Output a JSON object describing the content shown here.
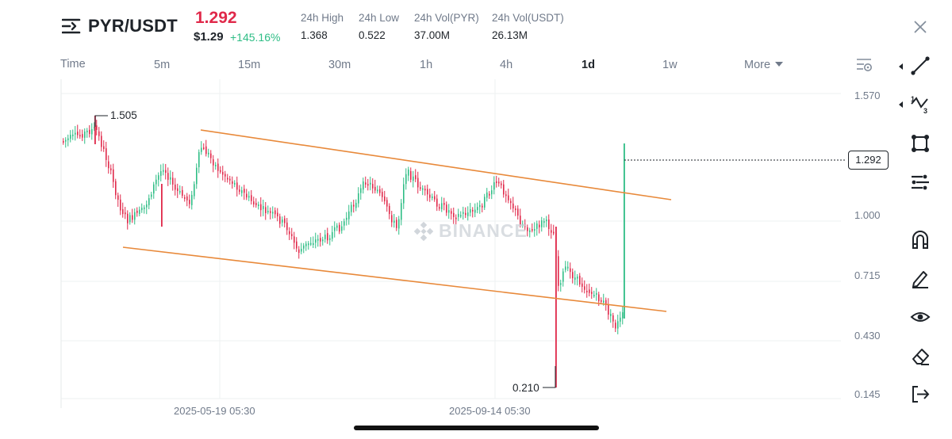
{
  "header": {
    "pair": "PYR/USDT",
    "last_price": "1.292",
    "usd_price": "$1.29",
    "change": "+145.16%",
    "stats": [
      {
        "label": "24h High",
        "value": "1.368"
      },
      {
        "label": "24h Low",
        "value": "0.522"
      },
      {
        "label": "24h Vol(PYR)",
        "value": "37.00M"
      },
      {
        "label": "24h Vol(USDT)",
        "value": "26.13M"
      }
    ]
  },
  "intervals": {
    "items": [
      "Time",
      "5m",
      "15m",
      "30m",
      "1h",
      "4h",
      "1d",
      "1w"
    ],
    "active": "1d",
    "more": "More"
  },
  "chart_data": {
    "type": "candlestick",
    "price_axis": [
      "1.570",
      "1.000",
      "0.715",
      "0.430",
      "0.145"
    ],
    "date_axis": [
      "2025-05-19 05:30",
      "2025-09-14 05:30"
    ],
    "current_price": "1.292",
    "high_marker": "1.505",
    "low_marker": "0.210",
    "watermark": "BINANCE",
    "ylim": [
      0.145,
      1.57
    ],
    "channel_lines": [
      {
        "name": "upper",
        "from": 1.45,
        "to": 1.12
      },
      {
        "name": "lower",
        "from": 0.87,
        "to": 0.55
      }
    ]
  },
  "colors": {
    "up": "#2ebd85",
    "down": "#e0294a",
    "trendline": "#e8893a",
    "text": "#1e2329",
    "muted": "#707a8a"
  },
  "toolbar": {
    "icons": [
      "line-tool-icon",
      "fib-tool-icon",
      "shape-tool-icon",
      "indicator-tool-icon",
      "magnet-icon",
      "pencil-icon",
      "eye-icon",
      "eraser-icon",
      "exit-icon"
    ]
  }
}
